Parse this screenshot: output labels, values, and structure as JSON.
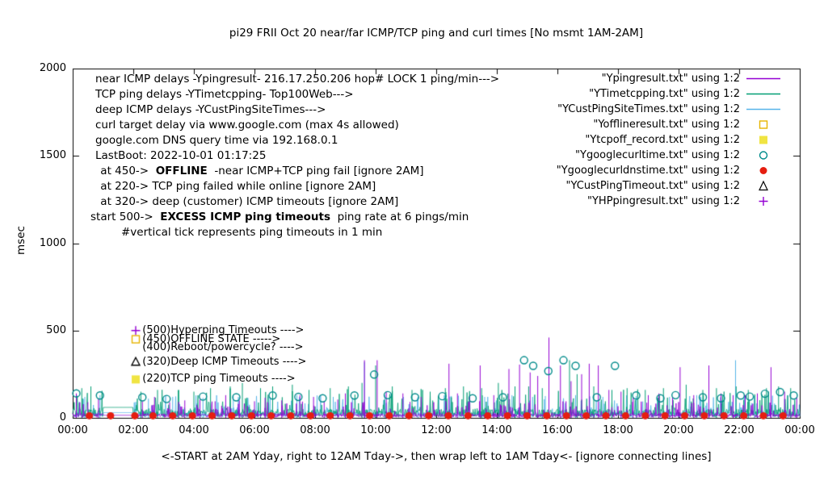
{
  "chart_data": {
    "type": "line",
    "title": "pi29 FRII Oct 20  near/far ICMP/TCP ping and curl times [No msmt 1AM-2AM]",
    "ylabel": "msec",
    "xlabel": "<-START at 2AM Yday, right to 12AM Tday->, then wrap left to 1AM Tday<- [ignore connecting lines]",
    "ylim": [
      0,
      2000
    ],
    "xlim_hours": [
      0,
      24
    ],
    "grid": false,
    "legend_position": "top-right",
    "no_msmt_gap": [
      1,
      2
    ],
    "y_ticks": [
      {
        "label": "0",
        "value": 0
      },
      {
        "label": "500",
        "value": 500
      },
      {
        "label": "1000",
        "value": 1000
      },
      {
        "label": "1500",
        "value": 1500
      },
      {
        "label": "2000",
        "value": 2000
      }
    ],
    "x_ticks": [
      {
        "label": "00:00",
        "hour": 0
      },
      {
        "label": "02:00",
        "hour": 2
      },
      {
        "label": "04:00",
        "hour": 4
      },
      {
        "label": "06:00",
        "hour": 6
      },
      {
        "label": "08:00",
        "hour": 8
      },
      {
        "label": "10:00",
        "hour": 10
      },
      {
        "label": "12:00",
        "hour": 12
      },
      {
        "label": "14:00",
        "hour": 14
      },
      {
        "label": "16:00",
        "hour": 16
      },
      {
        "label": "18:00",
        "hour": 18
      },
      {
        "label": "20:00",
        "hour": 20
      },
      {
        "label": "22:00",
        "hour": 22
      },
      {
        "label": "00:00",
        "hour": 24
      }
    ],
    "legend": [
      {
        "label": "\"Ypingresult.txt\" using 1:2",
        "sample": "line",
        "color": "#9400d3"
      },
      {
        "label": "\"YTimetcpping.txt\" using 1:2",
        "sample": "line",
        "color": "#009e73"
      },
      {
        "label": "\"YCustPingSiteTimes.txt\" using 1:2",
        "sample": "line",
        "color": "#56b4e9"
      },
      {
        "label": "\"Yofflineresult.txt\" using 1:2",
        "sample": "square-open",
        "color": "#e6b400"
      },
      {
        "label": "\"Ytcpoff_record.txt\" using 1:2",
        "sample": "square-filled",
        "color": "#f0e442"
      },
      {
        "label": "\"Ygooglecurltime.txt\" using 1:2",
        "sample": "circle-open",
        "color": "#008b8b"
      },
      {
        "label": "\"Ygooglecurldnstime.txt\" using 1:2",
        "sample": "circle-filled",
        "color": "#e51e10"
      },
      {
        "label": "\"YCustPingTimeout.txt\" using 1:2",
        "sample": "triangle-open",
        "color": "#000000"
      },
      {
        "label": "\"YHPpingresult.txt\" using 1:2",
        "sample": "plus",
        "color": "#9400d3"
      }
    ],
    "annotations": [
      {
        "indent": 6,
        "segments": [
          {
            "text": "near ICMP delays -Ypingresult- 216.17.250.206 hop# LOCK 1 ping/min--->"
          }
        ]
      },
      {
        "indent": 6,
        "segments": [
          {
            "text": "TCP ping delays -YTimetcpping- Top100Web--->"
          }
        ]
      },
      {
        "indent": 6,
        "segments": [
          {
            "text": "deep ICMP delays -YCustPingSiteTimes--->"
          }
        ]
      },
      {
        "indent": 6,
        "segments": [
          {
            "text": "curl target delay via www.google.com (max 4s allowed)"
          }
        ]
      },
      {
        "indent": 6,
        "segments": [
          {
            "text": "google.com DNS query time via 192.168.0.1"
          }
        ]
      },
      {
        "indent": 6,
        "segments": [
          {
            "text": "LastBoot: 2022-10-01 01:17:25"
          }
        ]
      },
      {
        "indent": 8,
        "segments": [
          {
            "text": " at 450->  "
          },
          {
            "text": "OFFLINE",
            "bold": true
          },
          {
            "text": "  -near ICMP+TCP ping fail [ignore 2AM]"
          }
        ]
      },
      {
        "indent": 8,
        "segments": [
          {
            "text": " at 220-> TCP ping failed while online [ignore 2AM]"
          }
        ]
      },
      {
        "indent": 8,
        "segments": [
          {
            "text": " at 320-> deep (customer) ICMP timeouts [ignore 2AM]"
          }
        ]
      },
      {
        "indent": 0,
        "segments": [
          {
            "text": "start 500->  "
          },
          {
            "text": "EXCESS ICMP ping timeouts",
            "bold": true
          },
          {
            "text": "  ping rate at 6 pings/min"
          }
        ]
      },
      {
        "indent": 38,
        "segments": [
          {
            "text": "#vertical tick represents ping timeouts in 1 min"
          }
        ]
      }
    ],
    "inplot_labels": [
      {
        "x": 2.3,
        "marker_x": 2.08,
        "y": 500,
        "text": "(500)Hyperping Timeouts ---->",
        "marker": "plus",
        "color": "#9400d3"
      },
      {
        "x": 2.3,
        "marker_x": 2.08,
        "y": 450,
        "text": "(450)OFFLINE STATE ----->",
        "marker": "square-open",
        "color": "#e6b400"
      },
      {
        "x": 2.3,
        "marker_x": 2.08,
        "y": 400,
        "text": "(400)Reboot/powercycle? ---->",
        "marker": "none",
        "color": "#000000"
      },
      {
        "x": 2.3,
        "marker_x": 2.08,
        "y": 320,
        "text": "(320)Deep ICMP Timeouts ---->",
        "marker": "triangle-open",
        "color": "#000000"
      },
      {
        "x": 2.3,
        "marker_x": 2.08,
        "y": 220,
        "text": "(220)TCP ping Timeouts ---->",
        "marker": "square-filled",
        "color": "#f0e442"
      }
    ],
    "series": [
      {
        "name": "Ypingresult.txt",
        "style": "noisy-line",
        "color": "#9400d3",
        "noise": {
          "seed": 7,
          "floor": 3,
          "mid": 22,
          "peak": 95,
          "peak_p": 0.1,
          "gap_value": 15
        },
        "spikes": [
          [
            0.12,
            140
          ],
          [
            0.5,
            90
          ],
          [
            0.85,
            110
          ],
          [
            2.3,
            95
          ],
          [
            2.7,
            120
          ],
          [
            3.2,
            90
          ],
          [
            3.7,
            100
          ],
          [
            4.2,
            105
          ],
          [
            4.7,
            95
          ],
          [
            5.05,
            130
          ],
          [
            5.5,
            100
          ],
          [
            6.0,
            95
          ],
          [
            6.35,
            115
          ],
          [
            6.9,
            100
          ],
          [
            7.5,
            130
          ],
          [
            7.95,
            120
          ],
          [
            8.3,
            95
          ],
          [
            8.75,
            105
          ],
          [
            9.0,
            140
          ],
          [
            9.63,
            330
          ],
          [
            10.05,
            330
          ],
          [
            10.35,
            150
          ],
          [
            10.9,
            140
          ],
          [
            11.5,
            120
          ],
          [
            12.42,
            310
          ],
          [
            12.7,
            140
          ],
          [
            13.1,
            120
          ],
          [
            13.45,
            300
          ],
          [
            13.9,
            130
          ],
          [
            14.4,
            280
          ],
          [
            14.75,
            305
          ],
          [
            15.1,
            260
          ],
          [
            15.35,
            240
          ],
          [
            15.72,
            460
          ],
          [
            16.1,
            300
          ],
          [
            16.45,
            210
          ],
          [
            16.8,
            250
          ],
          [
            17.05,
            310
          ],
          [
            17.35,
            300
          ],
          [
            17.7,
            160
          ],
          [
            18.1,
            150
          ],
          [
            18.5,
            120
          ],
          [
            19.0,
            130
          ],
          [
            19.35,
            140
          ],
          [
            19.8,
            120
          ],
          [
            20.05,
            290
          ],
          [
            20.5,
            130
          ],
          [
            21.0,
            300
          ],
          [
            21.4,
            140
          ],
          [
            21.8,
            130
          ],
          [
            22.2,
            130
          ],
          [
            22.6,
            140
          ],
          [
            23.05,
            290
          ],
          [
            23.5,
            150
          ],
          [
            23.9,
            120
          ]
        ]
      },
      {
        "name": "YTimetcpping.txt",
        "style": "noisy-line",
        "color": "#009e73",
        "noise": {
          "seed": 13,
          "floor": 5,
          "mid": 45,
          "peak": 170,
          "peak_p": 0.13,
          "gap_value": 60
        },
        "spikes": [
          [
            0.3,
            170
          ],
          [
            0.6,
            180
          ],
          [
            2.25,
            150
          ],
          [
            2.8,
            160
          ],
          [
            3.5,
            160
          ],
          [
            4.0,
            150
          ],
          [
            4.55,
            170
          ],
          [
            5.2,
            180
          ],
          [
            5.6,
            200
          ],
          [
            6.2,
            170
          ],
          [
            6.6,
            180
          ],
          [
            7.25,
            190
          ],
          [
            7.8,
            160
          ],
          [
            8.5,
            170
          ],
          [
            9.1,
            180
          ],
          [
            9.55,
            200
          ],
          [
            10.0,
            300
          ],
          [
            10.55,
            180
          ],
          [
            11.2,
            160
          ],
          [
            11.8,
            150
          ],
          [
            12.3,
            170
          ],
          [
            12.9,
            180
          ],
          [
            13.5,
            170
          ],
          [
            14.05,
            200
          ],
          [
            14.6,
            180
          ],
          [
            15.05,
            180
          ],
          [
            15.5,
            170
          ],
          [
            16.4,
            330
          ],
          [
            16.65,
            250
          ],
          [
            17.2,
            180
          ],
          [
            17.8,
            160
          ],
          [
            18.3,
            170
          ],
          [
            18.9,
            160
          ],
          [
            19.5,
            170
          ],
          [
            20.25,
            190
          ],
          [
            20.8,
            160
          ],
          [
            21.25,
            170
          ],
          [
            21.9,
            180
          ],
          [
            22.3,
            160
          ],
          [
            22.9,
            170
          ],
          [
            23.3,
            180
          ],
          [
            23.7,
            170
          ]
        ]
      },
      {
        "name": "YCustPingSiteTimes.txt",
        "style": "noisy-line",
        "color": "#56b4e9",
        "noise": {
          "seed": 29,
          "floor": 4,
          "mid": 32,
          "peak": 130,
          "peak_p": 0.1,
          "gap_value": 30
        },
        "spikes": [
          [
            0.4,
            120
          ],
          [
            0.9,
            130
          ],
          [
            2.5,
            110
          ],
          [
            3.3,
            120
          ],
          [
            4.3,
            115
          ],
          [
            5.3,
            125
          ],
          [
            6.45,
            120
          ],
          [
            7.4,
            130
          ],
          [
            8.6,
            120
          ],
          [
            9.63,
            320
          ],
          [
            10.3,
            130
          ],
          [
            11.4,
            120
          ],
          [
            12.5,
            125
          ],
          [
            13.6,
            120
          ],
          [
            14.5,
            130
          ],
          [
            15.6,
            125
          ],
          [
            16.6,
            130
          ],
          [
            17.5,
            120
          ],
          [
            18.6,
            125
          ],
          [
            19.7,
            120
          ],
          [
            20.6,
            130
          ],
          [
            21.88,
            330
          ],
          [
            22.5,
            125
          ],
          [
            23.6,
            130
          ]
        ]
      },
      {
        "name": "Yofflineresult.txt",
        "style": "square-open",
        "color": "#e6b400",
        "points": []
      },
      {
        "name": "Ytcpoff_record.txt",
        "style": "square-filled",
        "color": "#f0e442",
        "points": []
      },
      {
        "name": "Ygooglecurltime.txt",
        "style": "circle-open",
        "color": "#008b8b",
        "points": [
          [
            0.12,
            140
          ],
          [
            0.9,
            128
          ],
          [
            2.3,
            118
          ],
          [
            3.1,
            108
          ],
          [
            4.3,
            122
          ],
          [
            5.4,
            118
          ],
          [
            6.6,
            128
          ],
          [
            7.45,
            120
          ],
          [
            8.25,
            112
          ],
          [
            9.3,
            128
          ],
          [
            9.95,
            248
          ],
          [
            10.4,
            130
          ],
          [
            11.3,
            118
          ],
          [
            12.2,
            124
          ],
          [
            13.2,
            112
          ],
          [
            14.2,
            118
          ],
          [
            14.9,
            330
          ],
          [
            15.2,
            298
          ],
          [
            15.7,
            268
          ],
          [
            16.2,
            330
          ],
          [
            16.6,
            298
          ],
          [
            17.3,
            118
          ],
          [
            17.9,
            298
          ],
          [
            18.6,
            128
          ],
          [
            19.4,
            112
          ],
          [
            19.9,
            130
          ],
          [
            20.8,
            118
          ],
          [
            21.4,
            112
          ],
          [
            22.05,
            128
          ],
          [
            22.35,
            122
          ],
          [
            22.85,
            138
          ],
          [
            23.35,
            148
          ],
          [
            23.8,
            128
          ]
        ]
      },
      {
        "name": "Ygooglecurldnstime.txt",
        "style": "circle-filled",
        "color": "#e51e10",
        "points": [
          [
            0.55,
            12
          ],
          [
            1.25,
            12
          ],
          [
            2.05,
            12
          ],
          [
            2.65,
            12
          ],
          [
            3.3,
            12
          ],
          [
            3.95,
            12
          ],
          [
            4.6,
            12
          ],
          [
            5.25,
            12
          ],
          [
            5.9,
            12
          ],
          [
            6.55,
            12
          ],
          [
            7.2,
            12
          ],
          [
            7.85,
            12
          ],
          [
            8.5,
            12
          ],
          [
            9.15,
            12
          ],
          [
            9.8,
            12
          ],
          [
            10.45,
            12
          ],
          [
            11.1,
            12
          ],
          [
            11.75,
            12
          ],
          [
            12.4,
            12
          ],
          [
            13.05,
            12
          ],
          [
            13.7,
            12
          ],
          [
            14.35,
            12
          ],
          [
            15.0,
            12
          ],
          [
            15.65,
            12
          ],
          [
            16.3,
            12
          ],
          [
            16.95,
            12
          ],
          [
            17.6,
            12
          ],
          [
            18.25,
            12
          ],
          [
            18.9,
            12
          ],
          [
            19.55,
            12
          ],
          [
            20.2,
            12
          ],
          [
            20.85,
            12
          ],
          [
            21.5,
            12
          ],
          [
            22.15,
            12
          ],
          [
            22.8,
            12
          ],
          [
            23.45,
            12
          ]
        ]
      },
      {
        "name": "YCustPingTimeout.txt",
        "style": "triangle-open",
        "color": "#000000",
        "points": []
      },
      {
        "name": "YHPpingresult.txt",
        "style": "plus",
        "color": "#9400d3",
        "points": []
      }
    ]
  }
}
